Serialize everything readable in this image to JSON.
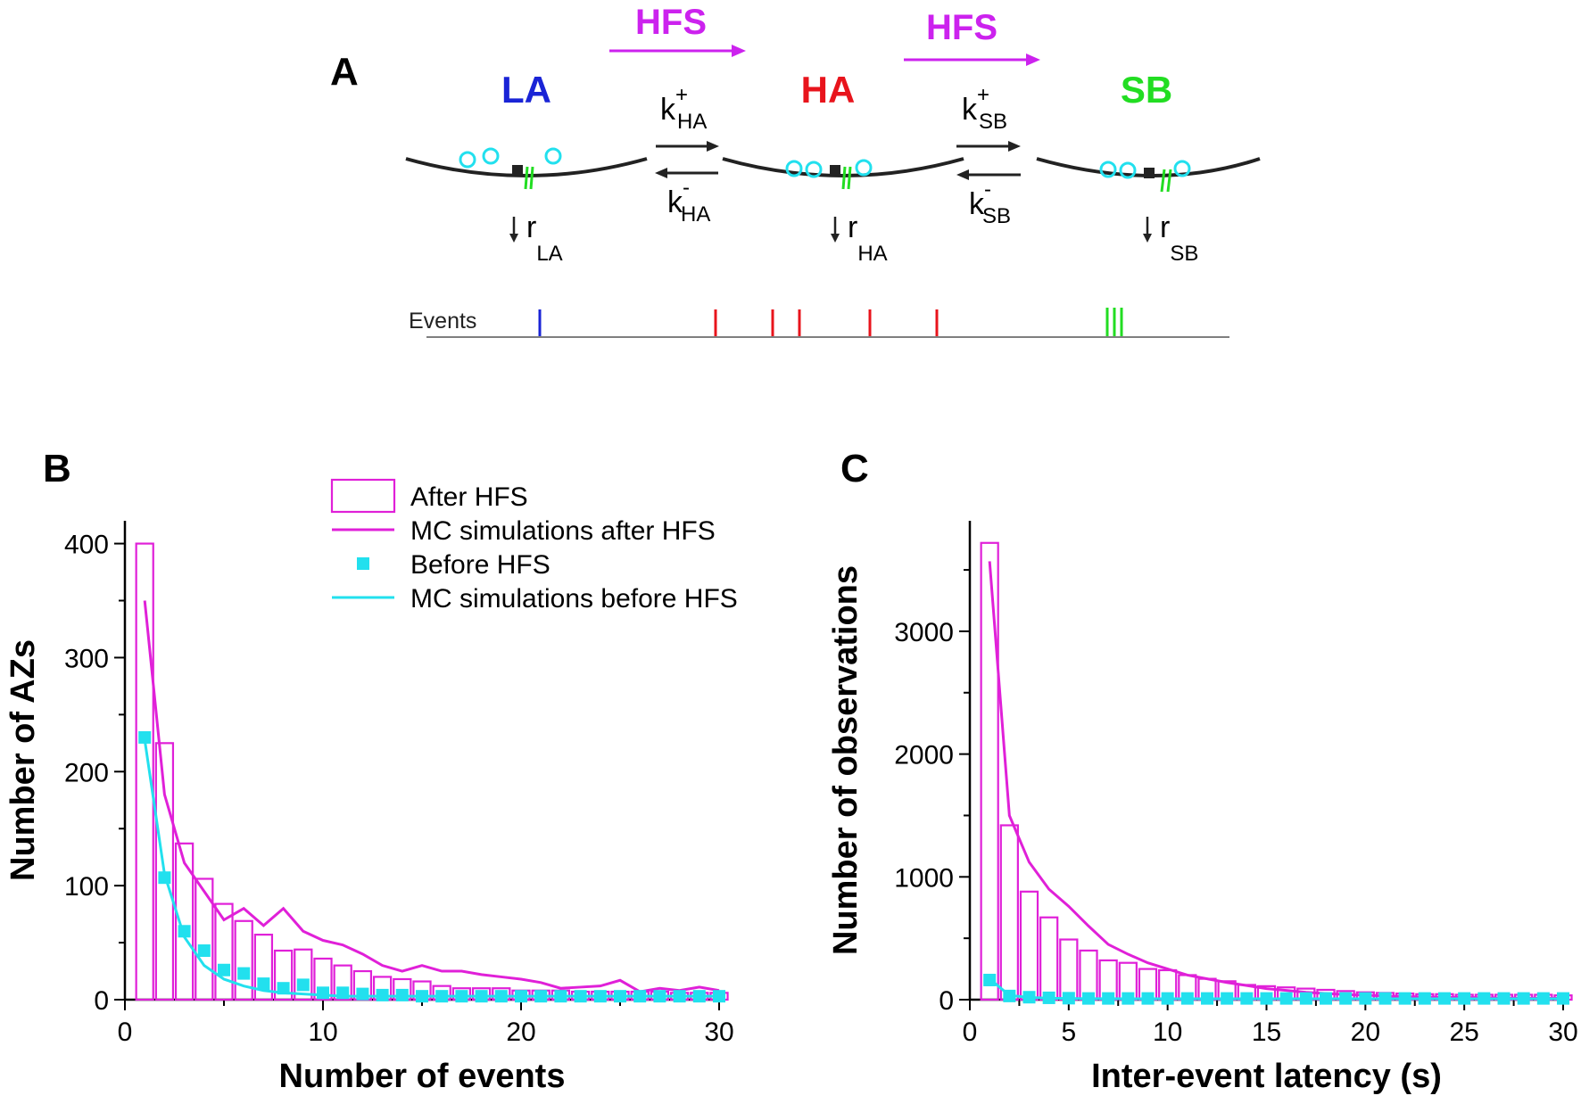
{
  "panel_a": {
    "letter": "A",
    "states": [
      {
        "name": "LA",
        "color": "#1a24d6",
        "release_rate": "r",
        "release_sub": "LA"
      },
      {
        "name": "HA",
        "color": "#e8141c",
        "release_rate": "r",
        "release_sub": "HA"
      },
      {
        "name": "SB",
        "color": "#22dd22",
        "release_rate": "r",
        "release_sub": "SB"
      }
    ],
    "transitions": [
      {
        "arrow_label": "HFS",
        "forward": "k",
        "forward_sup": "+",
        "forward_sub": "HA",
        "backward": "k",
        "backward_sup": "-",
        "backward_sub": "HA"
      },
      {
        "arrow_label": "HFS",
        "forward": "k",
        "forward_sup": "+",
        "forward_sub": "SB",
        "backward": "k",
        "backward_sup": "-",
        "backward_sub": "SB"
      }
    ],
    "events_label": "Events",
    "event_colors": {
      "LA": "#1a24d6",
      "HA": "#e8141c",
      "SB": "#22dd22"
    },
    "vesicle_color": "#22e0ee",
    "hfs_color": "#cc22ee"
  },
  "chart_data": [
    {
      "panel": "B",
      "type": "bar",
      "xlabel": "Number of events",
      "ylabel": "Number of AZs",
      "xlim": [
        0,
        30
      ],
      "ylim": [
        0,
        420
      ],
      "xticks": [
        0,
        10,
        20,
        30
      ],
      "yticks": [
        0,
        100,
        200,
        300,
        400
      ],
      "x": [
        1,
        2,
        3,
        4,
        5,
        6,
        7,
        8,
        9,
        10,
        11,
        12,
        13,
        14,
        15,
        16,
        17,
        18,
        19,
        20,
        21,
        22,
        23,
        24,
        25,
        26,
        27,
        28,
        29,
        30
      ],
      "series": [
        {
          "name": "After HFS",
          "kind": "hollow-bar",
          "color": "#e020d8",
          "values": [
            400,
            225,
            137,
            106,
            84,
            69,
            57,
            43,
            44,
            36,
            30,
            25,
            20,
            18,
            16,
            12,
            10,
            10,
            10,
            8,
            8,
            8,
            7,
            7,
            7,
            7,
            7,
            6,
            6,
            6
          ]
        },
        {
          "name": "MC simulations after HFS",
          "kind": "line",
          "color": "#e020d8",
          "values": [
            350,
            180,
            120,
            95,
            70,
            80,
            65,
            80,
            60,
            52,
            48,
            40,
            30,
            25,
            30,
            25,
            25,
            22,
            20,
            18,
            15,
            10,
            11,
            12,
            17,
            7,
            10,
            8,
            11,
            8
          ]
        },
        {
          "name": "Before HFS",
          "kind": "square",
          "color": "#22e0ee",
          "values": [
            230,
            107,
            60,
            43,
            26,
            23,
            14,
            10,
            13,
            6,
            6,
            5,
            4,
            4,
            3,
            3,
            3,
            3,
            3,
            3,
            3,
            3,
            3,
            3,
            3,
            3,
            3,
            3,
            3,
            3
          ]
        },
        {
          "name": "MC simulations before HFS",
          "kind": "line",
          "color": "#22e0ee",
          "values": [
            228,
            110,
            55,
            30,
            18,
            12,
            8,
            6,
            5,
            4,
            3,
            3,
            3,
            3,
            3,
            3,
            3,
            3,
            3,
            3,
            3,
            3,
            3,
            3,
            3,
            3,
            3,
            3,
            3,
            3
          ]
        }
      ],
      "legend": [
        "After HFS",
        "MC simulations after HFS",
        "Before HFS",
        "MC simulations before HFS"
      ]
    },
    {
      "panel": "C",
      "type": "bar",
      "xlabel": "Inter-event latency (s)",
      "ylabel": "Number of observations",
      "xlim": [
        0,
        30
      ],
      "ylim": [
        0,
        3900
      ],
      "xticks": [
        0,
        5,
        10,
        15,
        20,
        25,
        30
      ],
      "yticks": [
        0,
        1000,
        2000,
        3000
      ],
      "x": [
        1,
        2,
        3,
        4,
        5,
        6,
        7,
        8,
        9,
        10,
        11,
        12,
        13,
        14,
        15,
        16,
        17,
        18,
        19,
        20,
        21,
        22,
        23,
        24,
        25,
        26,
        27,
        28,
        29,
        30
      ],
      "series": [
        {
          "name": "After HFS",
          "kind": "hollow-bar",
          "color": "#e020d8",
          "values": [
            3720,
            1420,
            880,
            670,
            490,
            400,
            320,
            300,
            250,
            240,
            200,
            170,
            150,
            120,
            110,
            100,
            90,
            80,
            70,
            60,
            55,
            50,
            45,
            45,
            40,
            40,
            40,
            40,
            40,
            35
          ]
        },
        {
          "name": "MC simulations after HFS",
          "kind": "line",
          "color": "#e020d8",
          "values": [
            3570,
            1500,
            1120,
            900,
            760,
            600,
            450,
            370,
            300,
            250,
            200,
            170,
            140,
            115,
            90,
            75,
            60,
            50,
            42,
            36,
            30,
            25,
            22,
            20,
            18,
            16,
            14,
            13,
            12,
            11
          ]
        },
        {
          "name": "Before HFS",
          "kind": "square",
          "color": "#22e0ee",
          "values": [
            160,
            30,
            20,
            15,
            12,
            10,
            10,
            10,
            10,
            10,
            10,
            10,
            10,
            10,
            10,
            10,
            10,
            10,
            10,
            10,
            10,
            10,
            10,
            10,
            10,
            10,
            10,
            10,
            10,
            10
          ]
        },
        {
          "name": "MC simulations before HFS",
          "kind": "line",
          "color": "#22e0ee",
          "values": [
            170,
            35,
            18,
            12,
            10,
            8,
            8,
            7,
            7,
            7,
            7,
            7,
            7,
            7,
            7,
            7,
            7,
            7,
            7,
            7,
            7,
            7,
            7,
            7,
            7,
            7,
            7,
            7,
            7,
            7
          ]
        }
      ]
    }
  ],
  "panel_letters": {
    "b": "B",
    "c": "C"
  }
}
